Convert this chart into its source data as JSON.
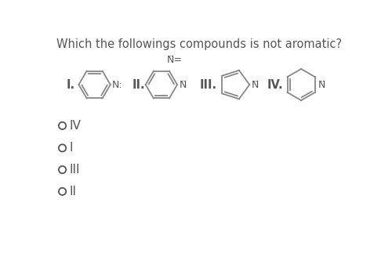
{
  "title": "Which the followings compounds is not aromatic?",
  "title_fontsize": 10.5,
  "bg_color": "#ffffff",
  "text_color": "#555555",
  "options": [
    "IV",
    "I",
    "III",
    "II"
  ],
  "option_fontsize": 11,
  "label_fontsize": 10.5,
  "fig_width": 5.0,
  "fig_height": 3.42,
  "dpi": 100,
  "line_color": "#888888",
  "lw": 1.3
}
